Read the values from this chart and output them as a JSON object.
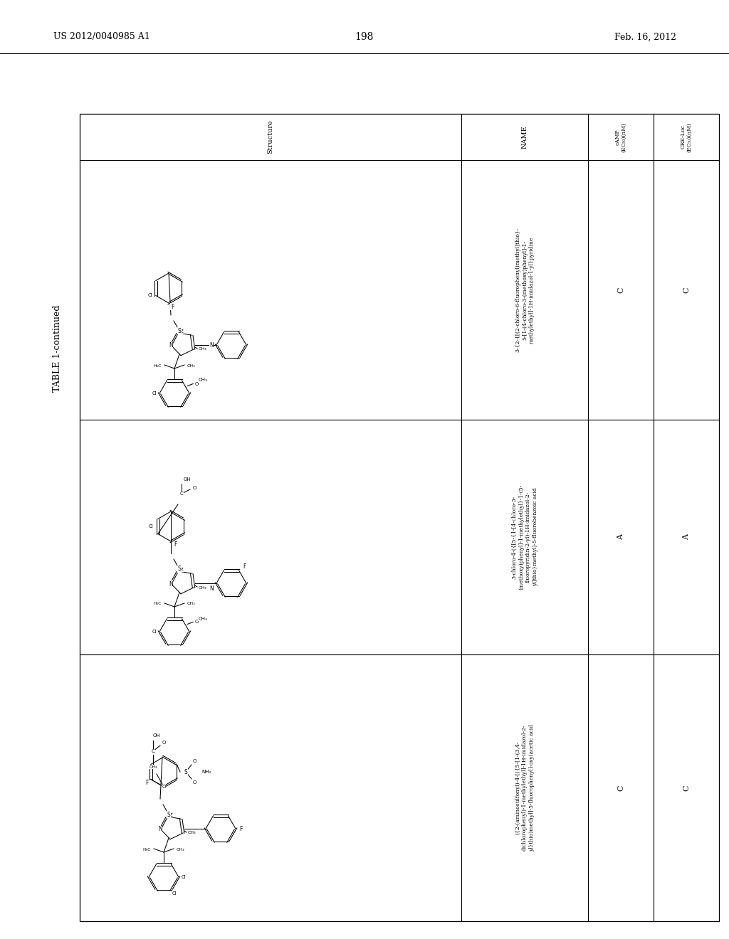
{
  "page_number": "198",
  "patent_number": "US 2012/0040985 A1",
  "patent_date": "Feb. 16, 2012",
  "table_title": "TABLE 1-continued",
  "bg_color": "#ffffff",
  "rows": [
    {
      "name": "3-{2-{[(2-chloro-6-fluorophenyl)methyl]thio}-\n5-[1-(4-chloro-3-(methoxy)phenyl]-1-\nmethylethyl]-1H-imidazol-1-yl}pyridine",
      "camp": "C",
      "cre_luc": "C"
    },
    {
      "name": "3-chloro-4-({[5-{1-[4-chloro-3-\n(methoxy)phenyl]-1-methylethyl}-1-(5-\nfluoropyridin-2-yl)-1H-imidazol-2-\nyl]thio}methyl)-5-fluorobenzoic acid",
      "camp": "A",
      "cre_luc": "A"
    },
    {
      "name": "({2-(aminosulfonyl)-4-[({5-[1-(3,4-\ndichlorophenyl)-1-methylethyl]-1H-imidazol-2-\nyl}thio)methyl]-5-fluorophenyl}oxy)acetic acid",
      "camp": "C",
      "cre_luc": "C"
    }
  ]
}
